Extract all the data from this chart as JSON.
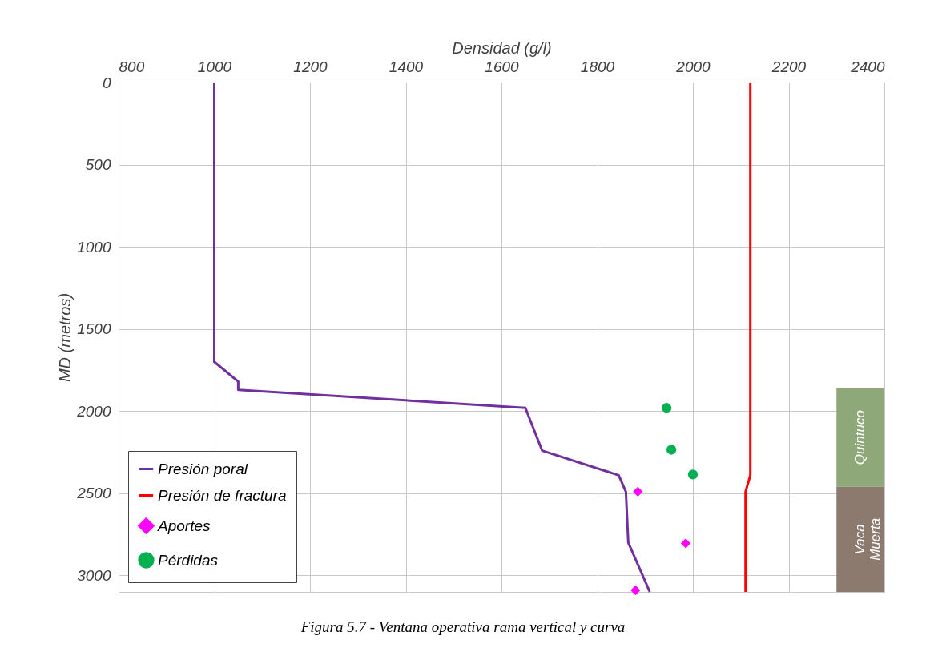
{
  "chart_data": {
    "type": "line",
    "xlabel": "Densidad (g/l)",
    "ylabel": "MD (metros)",
    "xlim": [
      800,
      2400
    ],
    "xticks": [
      800,
      1000,
      1200,
      1400,
      1600,
      1800,
      2000,
      2200,
      2400
    ],
    "ylim": [
      3100,
      0
    ],
    "yticks": [
      0,
      500,
      1000,
      1500,
      2000,
      2500,
      3000
    ],
    "grid": true,
    "legend": "bottom left",
    "line_style": "solid",
    "series": [
      {
        "name": "Presión poral",
        "color": "#7030a0",
        "x": [
          1000,
          1000,
          1050,
          1050,
          1650,
          1685,
          1845,
          1860,
          1865,
          1910
        ],
        "values": [
          0,
          1700,
          1820,
          1870,
          1980,
          2240,
          2390,
          2490,
          2800,
          3100
        ]
      },
      {
        "name": "Presión de fractura",
        "color": "#ff0000",
        "x": [
          2120,
          2120,
          2110,
          2110
        ],
        "values": [
          0,
          2390,
          2490,
          3100
        ]
      },
      {
        "name": "Aportes",
        "type": "scatter",
        "marker": "diamond",
        "color": "#ff00ff",
        "x": [
          1885,
          1985,
          1880
        ],
        "values": [
          2490,
          2805,
          3090
        ]
      },
      {
        "name": "Pérdidas",
        "type": "scatter",
        "marker": "circle",
        "color": "#00b050",
        "x": [
          1945,
          1955,
          2000
        ],
        "values": [
          1980,
          2235,
          2385
        ]
      }
    ],
    "bands": [
      {
        "axis": "y",
        "from": 1860,
        "to": 2460,
        "label": "Quintuco",
        "color": "#8fa87a"
      },
      {
        "axis": "y",
        "from": 2460,
        "to": 3100,
        "label": "Vaca Muerta",
        "color": "#8b7a6d"
      }
    ],
    "annotations": [
      "Figura 5.7 - Ventana operativa rama vertical y curva"
    ]
  }
}
